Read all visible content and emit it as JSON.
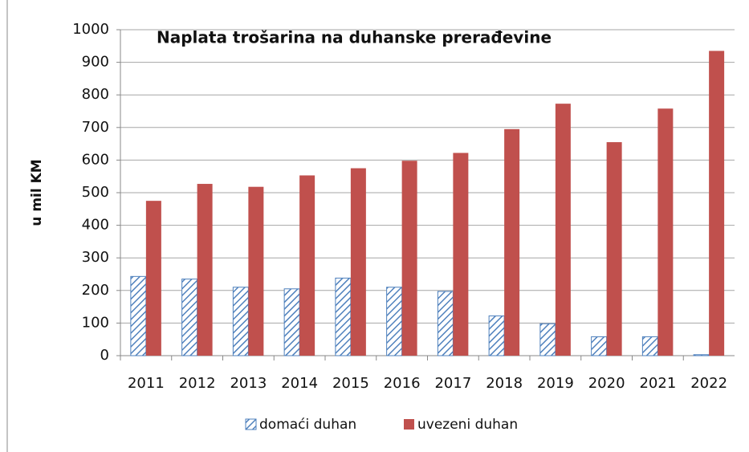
{
  "chart_data": {
    "type": "bar",
    "title": "Naplata trošarina na duhanske prerađevine",
    "y_label": "u mil KM",
    "categories": [
      "2011",
      "2012",
      "2013",
      "2014",
      "2015",
      "2016",
      "2017",
      "2018",
      "2019",
      "2020",
      "2021",
      "2022"
    ],
    "series": [
      {
        "name": "domaći duhan",
        "color": "#4f81bd",
        "hatch": true,
        "values": [
          243,
          235,
          210,
          205,
          238,
          210,
          197,
          122,
          98,
          58,
          58,
          3
        ]
      },
      {
        "name": "uvezeni duhan",
        "color": "#c0504d",
        "values": [
          475,
          527,
          518,
          553,
          575,
          598,
          622,
          695,
          773,
          655,
          758,
          935
        ]
      }
    ],
    "ylim": [
      0,
      1000
    ],
    "yticks": [
      0,
      100,
      200,
      300,
      400,
      500,
      600,
      700,
      800,
      900,
      1000
    ],
    "grid": true
  }
}
